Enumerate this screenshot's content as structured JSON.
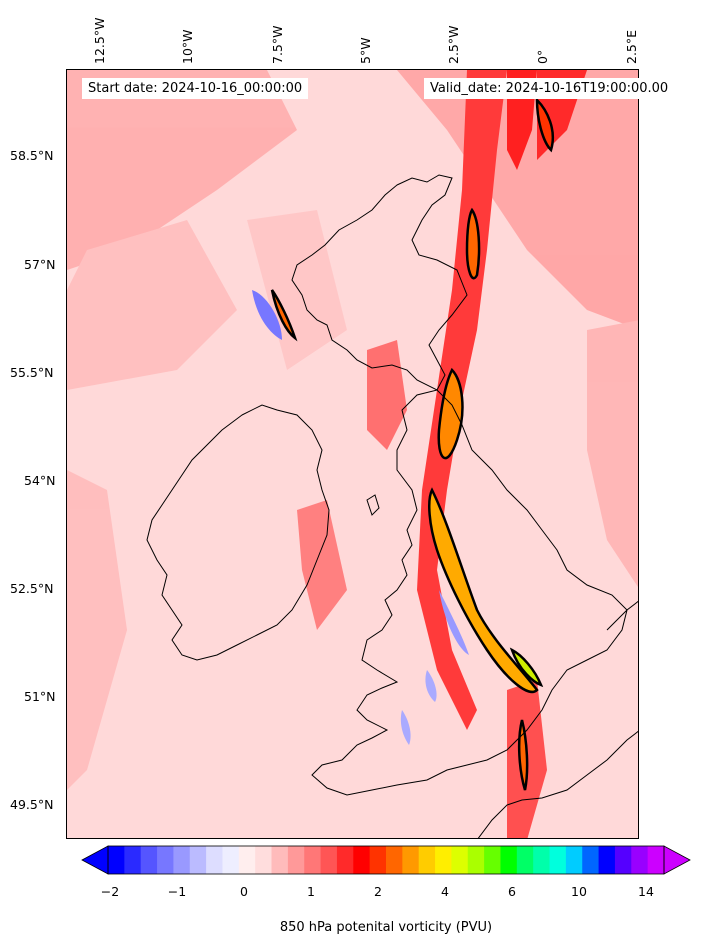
{
  "header": {
    "start_date": "Start date: 2024-10-16_00:00:00",
    "valid_date": "Valid_date: 2024-10-16T19:00:00.00"
  },
  "axes": {
    "lon_labels": [
      "12.5°W",
      "10°W",
      "7.5°W",
      "5°W",
      "2.5°W",
      "0°",
      "2.5°E"
    ],
    "lat_labels": [
      "58.5°N",
      "57°N",
      "55.5°N",
      "54°N",
      "52.5°N",
      "51°N",
      "49.5°N"
    ]
  },
  "colorbar": {
    "label": "850 hPa potenital vorticity (PVU)",
    "tick_labels": [
      "−2",
      "−1",
      "0",
      "1",
      "2",
      "4",
      "6",
      "10",
      "14"
    ],
    "colors": [
      "#0000ff",
      "#2a2aff",
      "#5555ff",
      "#7777ff",
      "#9999ff",
      "#bbbbff",
      "#ddddff",
      "#eeeeff",
      "#ffeeee",
      "#ffdddd",
      "#ffbbbb",
      "#ff9999",
      "#ff7777",
      "#ff5555",
      "#ff2a2a",
      "#ff0000",
      "#ff3300",
      "#ff6600",
      "#ff9900",
      "#ffcc00",
      "#ffee00",
      "#ddff00",
      "#aaff00",
      "#66ff00",
      "#00ff00",
      "#00ff66",
      "#00ffaa",
      "#00ffdd",
      "#00ccff",
      "#0066ff",
      "#0000ff",
      "#5500ff",
      "#9900ff",
      "#cc00ff"
    ]
  },
  "colors": {
    "background_field": "#ffd9d9",
    "strong_pv": "#ff2020",
    "very_strong_pv": "#ff6600",
    "peak_pv": "#ccee00",
    "negative_pv": "#6666ff",
    "coastline": "#000000"
  }
}
